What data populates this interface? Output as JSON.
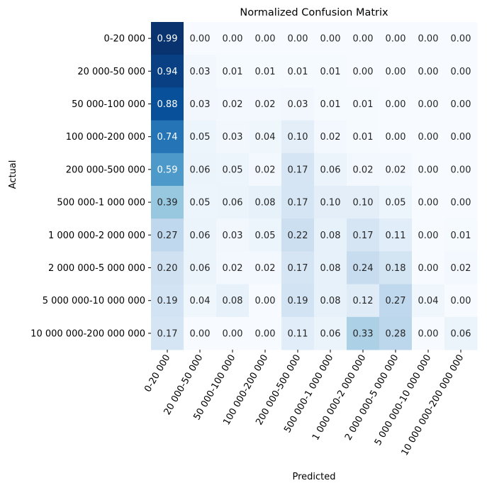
{
  "chart_data": {
    "type": "heatmap",
    "title": "Normalized Confusion Matrix",
    "xlabel": "Predicted",
    "ylabel": "Actual",
    "colormap": "Blues",
    "value_range": [
      0,
      1
    ],
    "colorbar": false,
    "row_labels": [
      "0-20 000",
      "20 000-50 000",
      "50 000-100 000",
      "100 000-200 000",
      "200 000-500 000",
      "500 000-1 000 000",
      "1 000 000-2 000 000",
      "2 000 000-5 000 000",
      "5 000 000-10 000 000",
      "10 000 000-200 000 000"
    ],
    "column_labels": [
      "0-20 000",
      "20 000-50 000",
      "50 000-100 000",
      "100 000-200 000",
      "200 000-500 000",
      "500 000-1 000 000",
      "1 000 000-2 000 000",
      "2 000 000-5 000 000",
      "5 000 000-10 000 000",
      "10 000 000-200 000 000"
    ],
    "values": [
      [
        0.99,
        0.0,
        0.0,
        0.0,
        0.0,
        0.0,
        0.0,
        0.0,
        0.0,
        0.0
      ],
      [
        0.94,
        0.03,
        0.01,
        0.01,
        0.01,
        0.01,
        0.0,
        0.0,
        0.0,
        0.0
      ],
      [
        0.88,
        0.03,
        0.02,
        0.02,
        0.03,
        0.01,
        0.01,
        0.0,
        0.0,
        0.0
      ],
      [
        0.74,
        0.05,
        0.03,
        0.04,
        0.1,
        0.02,
        0.01,
        0.0,
        0.0,
        0.0
      ],
      [
        0.59,
        0.06,
        0.05,
        0.02,
        0.17,
        0.06,
        0.02,
        0.02,
        0.0,
        0.0
      ],
      [
        0.39,
        0.05,
        0.06,
        0.08,
        0.17,
        0.1,
        0.1,
        0.05,
        0.0,
        0.0
      ],
      [
        0.27,
        0.06,
        0.03,
        0.05,
        0.22,
        0.08,
        0.17,
        0.11,
        0.0,
        0.01
      ],
      [
        0.2,
        0.06,
        0.02,
        0.02,
        0.17,
        0.08,
        0.24,
        0.18,
        0.0,
        0.02
      ],
      [
        0.19,
        0.04,
        0.08,
        0.0,
        0.19,
        0.08,
        0.12,
        0.27,
        0.04,
        0.0
      ],
      [
        0.17,
        0.0,
        0.0,
        0.0,
        0.11,
        0.06,
        0.33,
        0.28,
        0.0,
        0.06
      ]
    ]
  }
}
